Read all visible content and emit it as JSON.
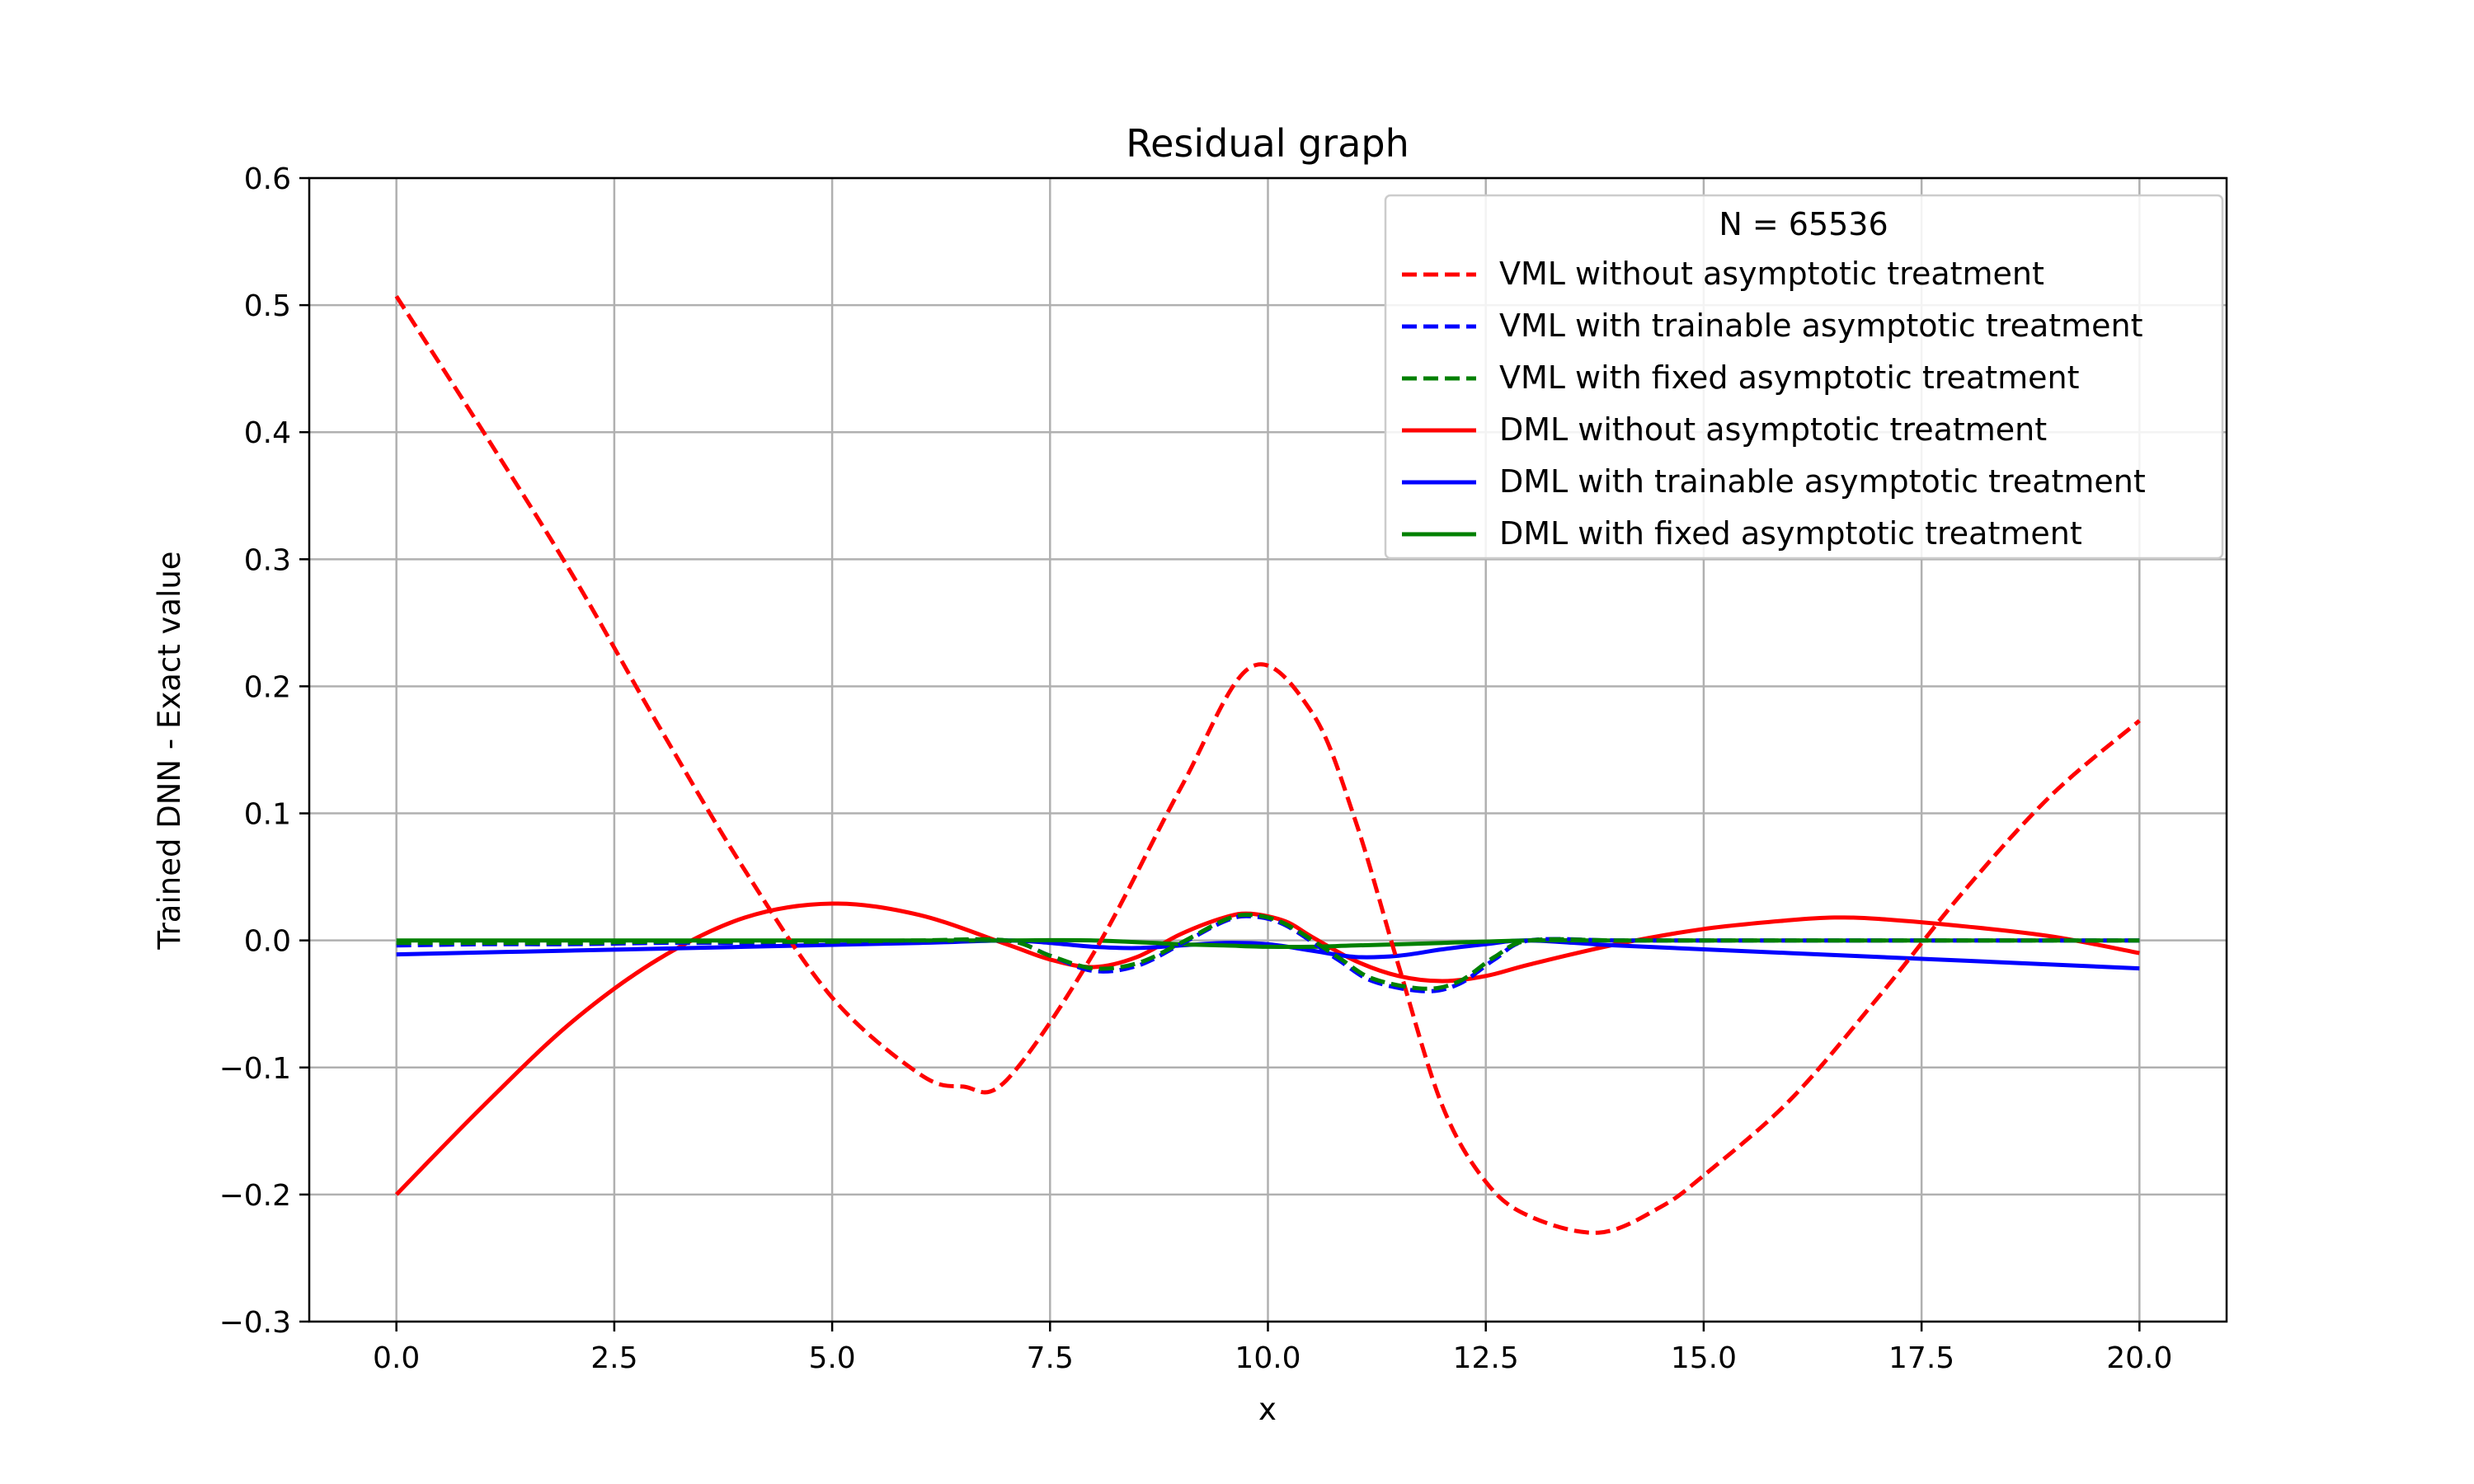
{
  "chart_data": {
    "type": "line",
    "title": "Residual graph",
    "xlabel": "x",
    "ylabel": "Trained DNN - Exact value",
    "xlim": [
      -1.0,
      21.0
    ],
    "ylim": [
      -0.3,
      0.6
    ],
    "xticks": [
      0.0,
      2.5,
      5.0,
      7.5,
      10.0,
      12.5,
      15.0,
      17.5,
      20.0
    ],
    "xtick_labels": [
      "0.0",
      "2.5",
      "5.0",
      "7.5",
      "10.0",
      "12.5",
      "15.0",
      "17.5",
      "20.0"
    ],
    "yticks": [
      -0.3,
      -0.2,
      -0.1,
      0.0,
      0.1,
      0.2,
      0.3,
      0.4,
      0.5,
      0.6
    ],
    "ytick_labels": [
      "−0.3",
      "−0.2",
      "−0.1",
      "0.0",
      "0.1",
      "0.2",
      "0.3",
      "0.4",
      "0.5",
      "0.6"
    ],
    "grid": true,
    "legend": {
      "title": "N = 65536",
      "location": "top-right"
    },
    "series": [
      {
        "name": "VML without asymptotic treatment",
        "color": "#ff0000",
        "style": "dashed",
        "x": [
          0.0,
          1.0,
          2.0,
          3.0,
          4.0,
          5.0,
          6.0,
          6.5,
          7.0,
          8.0,
          9.0,
          9.8,
          10.5,
          11.0,
          11.5,
          12.0,
          12.5,
          13.0,
          13.8,
          14.5,
          15.0,
          16.0,
          17.0,
          18.0,
          19.0,
          20.0
        ],
        "y": [
          0.507,
          0.4,
          0.29,
          0.17,
          0.055,
          -0.045,
          -0.105,
          -0.115,
          -0.11,
          -0.01,
          0.12,
          0.215,
          0.18,
          0.095,
          -0.02,
          -0.13,
          -0.19,
          -0.217,
          -0.23,
          -0.21,
          -0.185,
          -0.125,
          -0.045,
          0.04,
          0.115,
          0.173
        ]
      },
      {
        "name": "VML with trainable asymptotic treatment",
        "color": "#0000ff",
        "style": "dashed",
        "x": [
          0.0,
          1.0,
          2.0,
          3.0,
          4.0,
          5.0,
          6.0,
          7.0,
          7.5,
          8.0,
          8.5,
          9.0,
          9.5,
          9.8,
          10.2,
          10.8,
          11.2,
          11.8,
          12.2,
          12.6,
          13.0,
          14.0,
          15.0,
          16.0,
          17.0,
          18.0,
          19.0,
          20.0
        ],
        "y": [
          -0.004,
          -0.003,
          -0.003,
          -0.002,
          -0.002,
          -0.001,
          -0.001,
          0.0,
          -0.012,
          -0.024,
          -0.02,
          -0.003,
          0.015,
          0.019,
          0.012,
          -0.015,
          -0.032,
          -0.04,
          -0.034,
          -0.015,
          0.0,
          0.0,
          0.0,
          0.0,
          0.0,
          0.0,
          0.0,
          0.0
        ]
      },
      {
        "name": "VML with fixed asymptotic treatment",
        "color": "#008000",
        "style": "dashed",
        "x": [
          0.0,
          1.0,
          2.0,
          3.0,
          4.0,
          5.0,
          6.0,
          7.0,
          7.5,
          8.0,
          8.5,
          9.0,
          9.5,
          9.8,
          10.2,
          10.8,
          11.2,
          11.8,
          12.2,
          12.6,
          13.0,
          14.0,
          15.0,
          16.0,
          17.0,
          18.0,
          19.0,
          20.0
        ],
        "y": [
          -0.002,
          -0.002,
          -0.002,
          -0.001,
          -0.001,
          -0.001,
          0.0,
          0.0,
          -0.012,
          -0.022,
          -0.018,
          -0.002,
          0.016,
          0.02,
          0.013,
          -0.013,
          -0.03,
          -0.038,
          -0.032,
          -0.013,
          0.0,
          0.0,
          0.0,
          0.0,
          0.0,
          0.0,
          0.0,
          0.0
        ]
      },
      {
        "name": "DML without asymptotic treatment",
        "color": "#ff0000",
        "style": "solid",
        "x": [
          0.0,
          1.0,
          2.0,
          3.0,
          4.0,
          5.0,
          6.0,
          7.0,
          7.5,
          8.0,
          8.5,
          9.0,
          9.5,
          9.8,
          10.2,
          10.5,
          11.0,
          11.5,
          12.0,
          12.5,
          13.0,
          14.0,
          15.0,
          16.0,
          16.5,
          17.0,
          18.0,
          19.0,
          20.0
        ],
        "y": [
          -0.2,
          -0.13,
          -0.065,
          -0.015,
          0.018,
          0.029,
          0.02,
          -0.003,
          -0.015,
          -0.021,
          -0.013,
          0.005,
          0.018,
          0.021,
          0.015,
          0.003,
          -0.016,
          -0.028,
          -0.032,
          -0.028,
          -0.019,
          -0.003,
          0.009,
          0.016,
          0.018,
          0.017,
          0.011,
          0.003,
          -0.01
        ]
      },
      {
        "name": "DML with trainable asymptotic treatment",
        "color": "#0000ff",
        "style": "solid",
        "x": [
          0.0,
          2.0,
          4.0,
          6.0,
          7.0,
          7.5,
          8.0,
          8.5,
          9.0,
          9.5,
          10.0,
          10.5,
          11.0,
          11.5,
          12.0,
          12.5,
          13.0,
          14.0,
          16.0,
          18.0,
          20.0
        ],
        "y": [
          -0.011,
          -0.008,
          -0.005,
          -0.002,
          0.0,
          -0.002,
          -0.005,
          -0.006,
          -0.004,
          -0.002,
          -0.003,
          -0.008,
          -0.013,
          -0.012,
          -0.007,
          -0.003,
          0.0,
          -0.004,
          -0.01,
          -0.016,
          -0.022
        ]
      },
      {
        "name": "DML with fixed asymptotic treatment",
        "color": "#008000",
        "style": "solid",
        "x": [
          0.0,
          2.0,
          4.0,
          6.0,
          7.0,
          8.0,
          9.0,
          9.5,
          10.0,
          10.5,
          11.0,
          12.0,
          13.0,
          14.0,
          16.0,
          18.0,
          20.0
        ],
        "y": [
          0.0,
          0.0,
          0.0,
          0.0,
          0.0,
          0.0,
          -0.003,
          -0.004,
          -0.005,
          -0.005,
          -0.004,
          -0.002,
          0.0,
          0.0,
          0.0,
          0.0,
          0.0
        ]
      }
    ]
  }
}
